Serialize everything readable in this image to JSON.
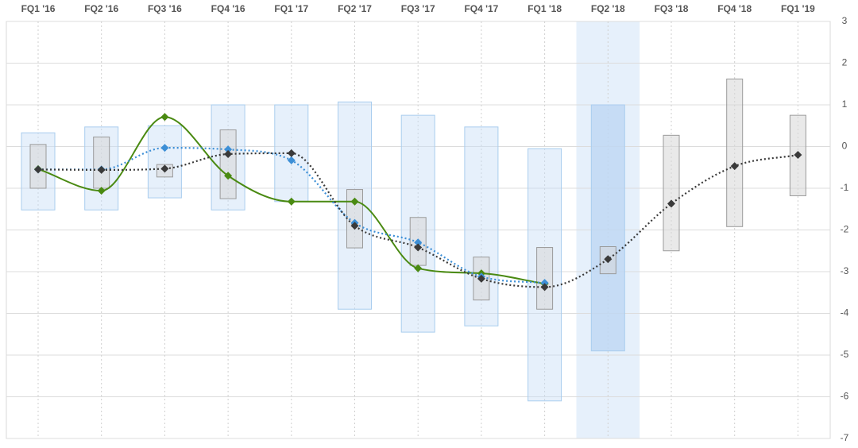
{
  "chart_data": {
    "type": "line",
    "categories": [
      "FQ1 '16",
      "FQ2 '16",
      "FQ3 '16",
      "FQ4 '16",
      "FQ1 '17",
      "FQ2 '17",
      "FQ3 '17",
      "FQ4 '17",
      "FQ1 '18",
      "FQ2 '18",
      "FQ3 '18",
      "FQ4 '18",
      "FQ1 '19"
    ],
    "ylim": [
      -7,
      3
    ],
    "yticks": [
      3,
      2,
      1,
      0,
      -1,
      -2,
      -3,
      -4,
      -5,
      -6,
      -7
    ],
    "grid": true,
    "highlight_index": 9,
    "ranges": [
      {
        "color": "#a9cdee",
        "low": [
          -1.52,
          -1.52,
          -1.23,
          -1.52,
          -1.32,
          -3.9,
          -4.45,
          -4.3,
          -6.1,
          -4.9,
          null,
          null,
          null
        ],
        "high": [
          0.33,
          0.47,
          0.5,
          1.0,
          1.0,
          1.07,
          0.75,
          0.47,
          -0.05,
          1.0,
          null,
          null,
          null
        ]
      },
      {
        "color": "#9a9a9a",
        "low": [
          -1.0,
          -1.0,
          -0.73,
          -1.25,
          null,
          -2.43,
          -2.85,
          -3.68,
          -3.9,
          -3.05,
          -2.5,
          -1.92,
          -1.18
        ],
        "high": [
          0.05,
          0.23,
          -0.43,
          0.4,
          null,
          -1.03,
          -1.7,
          -2.65,
          -2.42,
          -2.4,
          0.27,
          1.62,
          0.75
        ]
      }
    ],
    "series": [
      {
        "color": "#4a8a12",
        "style": "solid",
        "values": [
          -0.54,
          -1.06,
          0.71,
          -0.7,
          -1.32,
          -1.32,
          -2.92,
          -3.04,
          -3.29,
          null,
          null,
          null,
          null
        ]
      },
      {
        "color": "#3d8fd6",
        "style": "dotted",
        "values": [
          -0.55,
          -0.55,
          -0.03,
          -0.07,
          -0.33,
          -1.83,
          -2.3,
          -3.12,
          -3.27,
          null,
          null,
          null,
          null
        ]
      },
      {
        "color": "#3a3a3a",
        "style": "dotted",
        "values": [
          -0.55,
          -0.56,
          -0.53,
          -0.18,
          -0.16,
          -1.9,
          -2.42,
          -3.17,
          -3.37,
          -2.7,
          -1.37,
          -0.47,
          -0.2
        ]
      }
    ]
  }
}
